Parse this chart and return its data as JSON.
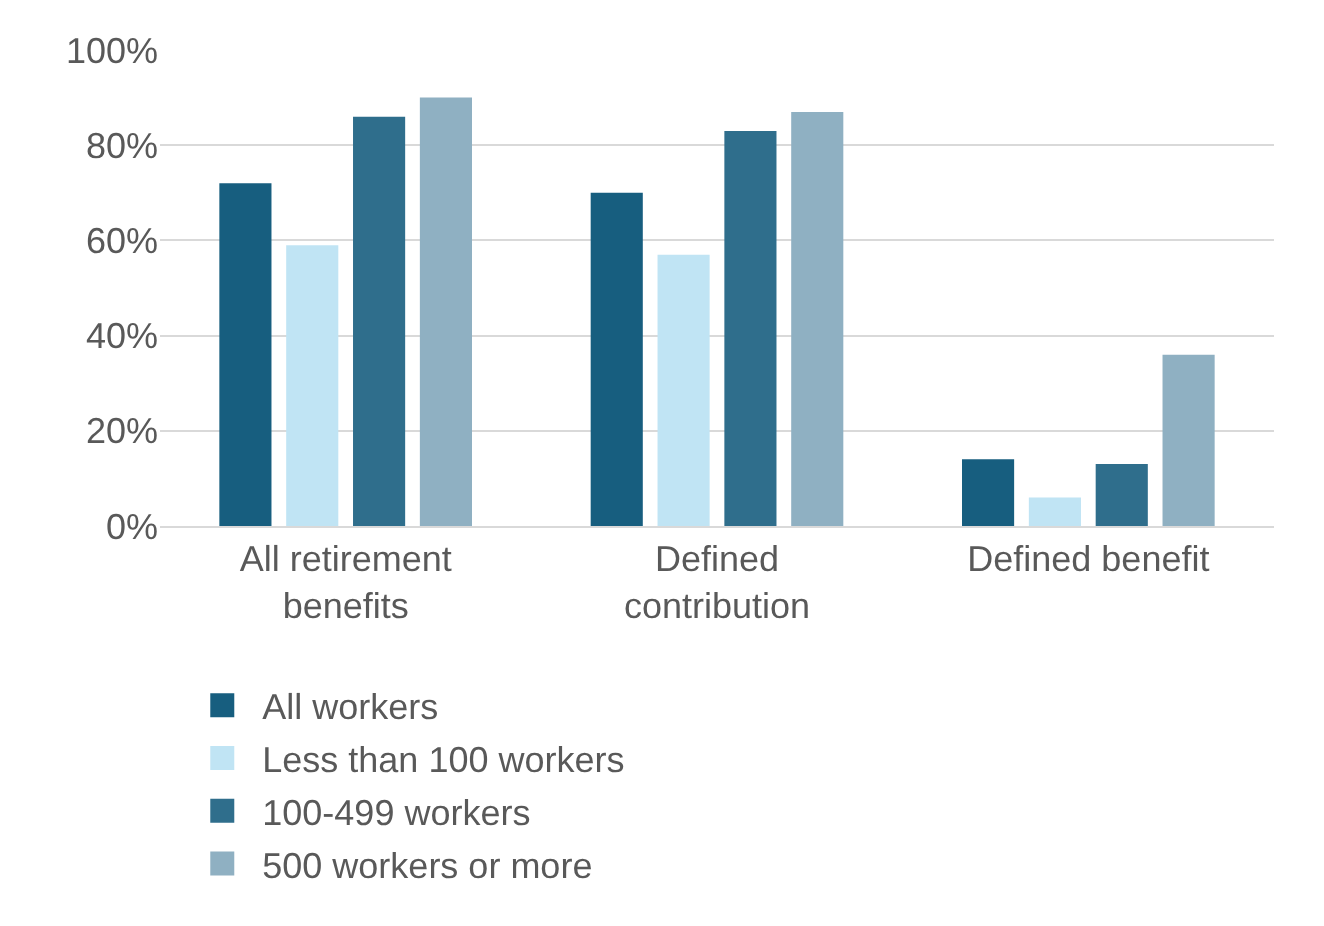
{
  "chart_data": {
    "type": "bar",
    "categories": [
      "All retirement benefits",
      "Defined contribution",
      "Defined benefit"
    ],
    "series": [
      {
        "name": "All workers",
        "color": "#175e7f",
        "values": [
          72,
          70,
          14
        ]
      },
      {
        "name": "Less than 100 workers",
        "color": "#c0e4f4",
        "values": [
          59,
          57,
          6
        ]
      },
      {
        "name": "100-499 workers",
        "color": "#2f6e8c",
        "values": [
          86,
          83,
          13
        ]
      },
      {
        "name": "500 workers or more",
        "color": "#8fb0c2",
        "values": [
          90,
          87,
          36
        ]
      }
    ],
    "ylim": [
      0,
      100
    ],
    "yticks": [
      {
        "value": 0,
        "label": "0%"
      },
      {
        "value": 20,
        "label": "20%"
      },
      {
        "value": 40,
        "label": "40%"
      },
      {
        "value": 60,
        "label": "60%"
      },
      {
        "value": 80,
        "label": "80%"
      },
      {
        "value": 100,
        "label": "100%"
      }
    ],
    "grid": "y",
    "legend": "bottom"
  }
}
